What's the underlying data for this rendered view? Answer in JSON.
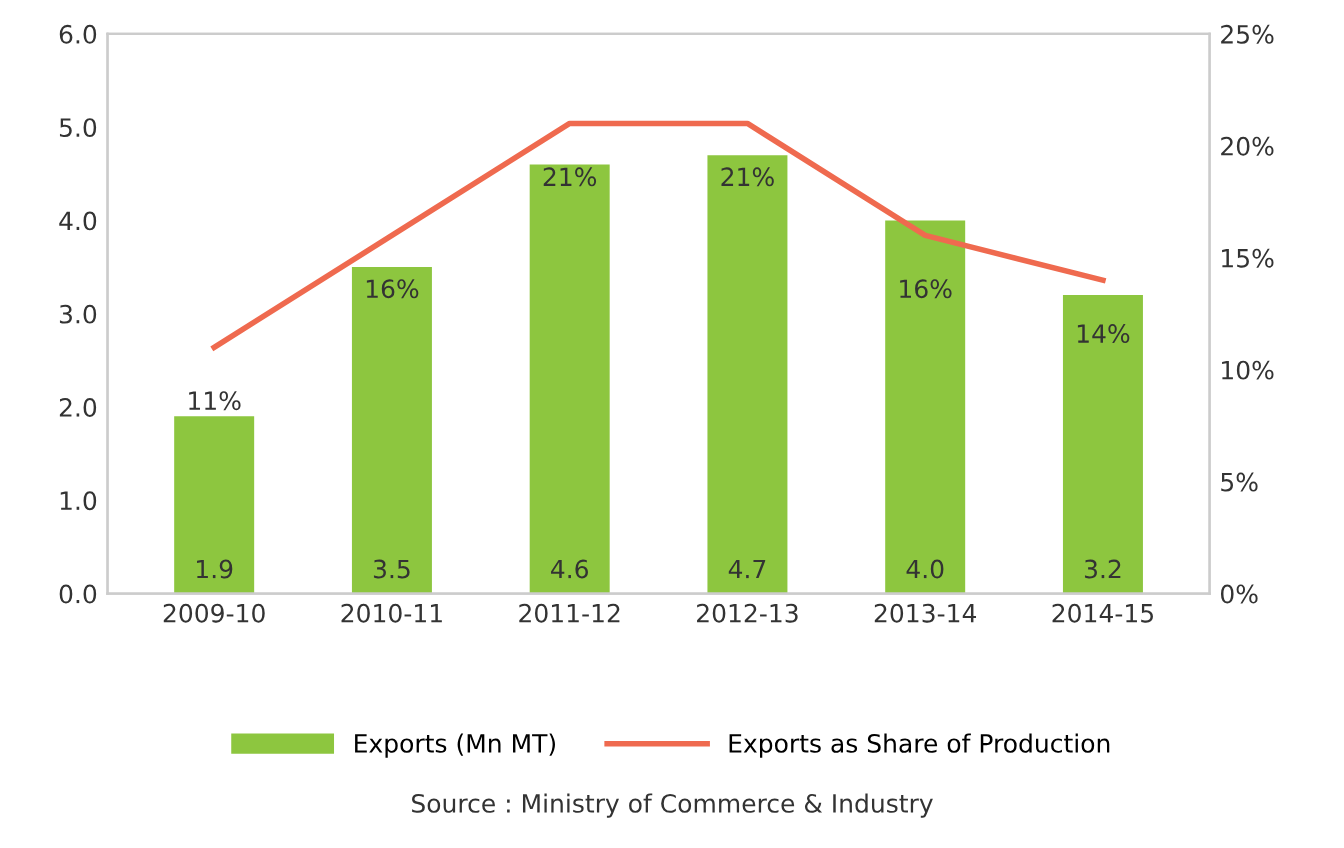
{
  "chart_data": {
    "type": "bar",
    "categories": [
      "2009-10",
      "2010-11",
      "2011-12",
      "2012-13",
      "2013-14",
      "2014-15"
    ],
    "series": [
      {
        "name": "Exports (Mn MT)",
        "color": "#8dc63f",
        "values": [
          1.9,
          3.5,
          4.6,
          4.7,
          4.0,
          3.2
        ],
        "value_labels": [
          "1.9",
          "3.5",
          "4.6",
          "4.7",
          "4.0",
          "3.2"
        ]
      },
      {
        "name": "Exports as Share of Production",
        "type": "line",
        "axis": "y2",
        "color": "#ef6a4f",
        "values": [
          11,
          16,
          21,
          21,
          16,
          14
        ],
        "value_labels": [
          "11%",
          "16%",
          "21%",
          "21%",
          "16%",
          "14%"
        ]
      }
    ],
    "ylim": [
      0,
      6
    ],
    "yticks": [
      {
        "value": 0,
        "label": "0.0"
      },
      {
        "value": 1,
        "label": "1.0"
      },
      {
        "value": 2,
        "label": "2.0"
      },
      {
        "value": 3,
        "label": "3.0"
      },
      {
        "value": 4,
        "label": "4.0"
      },
      {
        "value": 5,
        "label": "5.0"
      },
      {
        "value": 6,
        "label": "6.0"
      }
    ],
    "y2lim": [
      0,
      25
    ],
    "y2ticks": [
      {
        "value": 0,
        "label": "0%"
      },
      {
        "value": 5,
        "label": "5%"
      },
      {
        "value": 10,
        "label": "10%"
      },
      {
        "value": 15,
        "label": "15%"
      },
      {
        "value": 20,
        "label": "20%"
      },
      {
        "value": 25,
        "label": "25%"
      }
    ],
    "legend": "bottom",
    "grid": false,
    "marker": "none",
    "line_style": "solid",
    "annotations": [
      "Source : Ministry of Commerce & Industry"
    ]
  }
}
